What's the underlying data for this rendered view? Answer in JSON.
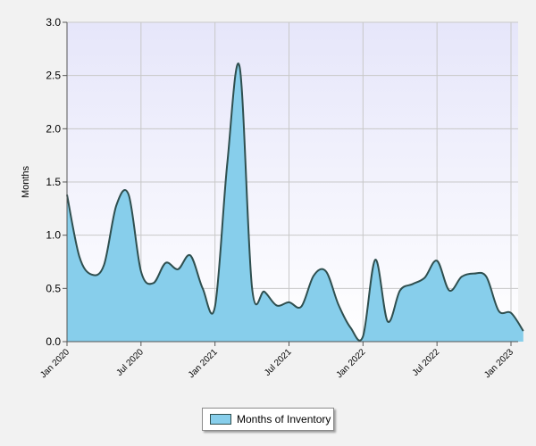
{
  "chart_data": {
    "type": "area",
    "ylabel": "Months",
    "ylim": [
      0,
      3
    ],
    "yticks": [
      "0.0",
      "0.5",
      "1.0",
      "1.5",
      "2.0",
      "2.5",
      "3.0"
    ],
    "xticks": [
      "Jan 2020",
      "Jul 2020",
      "Jan 2021",
      "Jul 2021",
      "Jan 2022",
      "Jul 2022",
      "Jan 2023"
    ],
    "grid": true,
    "legend_position": "bottom",
    "series": [
      {
        "name": "Months of Inventory",
        "points": [
          {
            "x": "2020-01",
            "y": 1.38
          },
          {
            "x": "2020-02",
            "y": 0.8
          },
          {
            "x": "2020-03",
            "y": 0.63
          },
          {
            "x": "2020-04",
            "y": 0.72
          },
          {
            "x": "2020-05",
            "y": 1.28
          },
          {
            "x": "2020-06",
            "y": 1.38
          },
          {
            "x": "2020-07",
            "y": 0.66
          },
          {
            "x": "2020-08",
            "y": 0.55
          },
          {
            "x": "2020-09",
            "y": 0.74
          },
          {
            "x": "2020-10",
            "y": 0.68
          },
          {
            "x": "2020-11",
            "y": 0.81
          },
          {
            "x": "2020-12",
            "y": 0.5
          },
          {
            "x": "2021-01",
            "y": 0.33
          },
          {
            "x": "2021-02",
            "y": 1.68
          },
          {
            "x": "2021-03",
            "y": 2.58
          },
          {
            "x": "2021-04",
            "y": 0.51
          },
          {
            "x": "2021-05",
            "y": 0.47
          },
          {
            "x": "2021-06",
            "y": 0.34
          },
          {
            "x": "2021-07",
            "y": 0.37
          },
          {
            "x": "2021-08",
            "y": 0.33
          },
          {
            "x": "2021-09",
            "y": 0.62
          },
          {
            "x": "2021-10",
            "y": 0.66
          },
          {
            "x": "2021-11",
            "y": 0.35
          },
          {
            "x": "2021-12",
            "y": 0.13
          },
          {
            "x": "2022-01",
            "y": 0.05
          },
          {
            "x": "2022-02",
            "y": 0.77
          },
          {
            "x": "2022-03",
            "y": 0.19
          },
          {
            "x": "2022-04",
            "y": 0.48
          },
          {
            "x": "2022-05",
            "y": 0.54
          },
          {
            "x": "2022-06",
            "y": 0.6
          },
          {
            "x": "2022-07",
            "y": 0.76
          },
          {
            "x": "2022-08",
            "y": 0.48
          },
          {
            "x": "2022-09",
            "y": 0.61
          },
          {
            "x": "2022-10",
            "y": 0.64
          },
          {
            "x": "2022-11",
            "y": 0.61
          },
          {
            "x": "2022-12",
            "y": 0.29
          },
          {
            "x": "2023-01",
            "y": 0.27
          },
          {
            "x": "2023-02",
            "y": 0.1
          }
        ]
      }
    ]
  },
  "colors": {
    "area_fill": "#87ceeb",
    "line": "#2f4f4f",
    "plot_bg_top": "#e6e6fa",
    "plot_bg_bottom": "#ffffff",
    "grid": "#c8c8c8"
  },
  "legend": {
    "label": "Months of Inventory"
  }
}
